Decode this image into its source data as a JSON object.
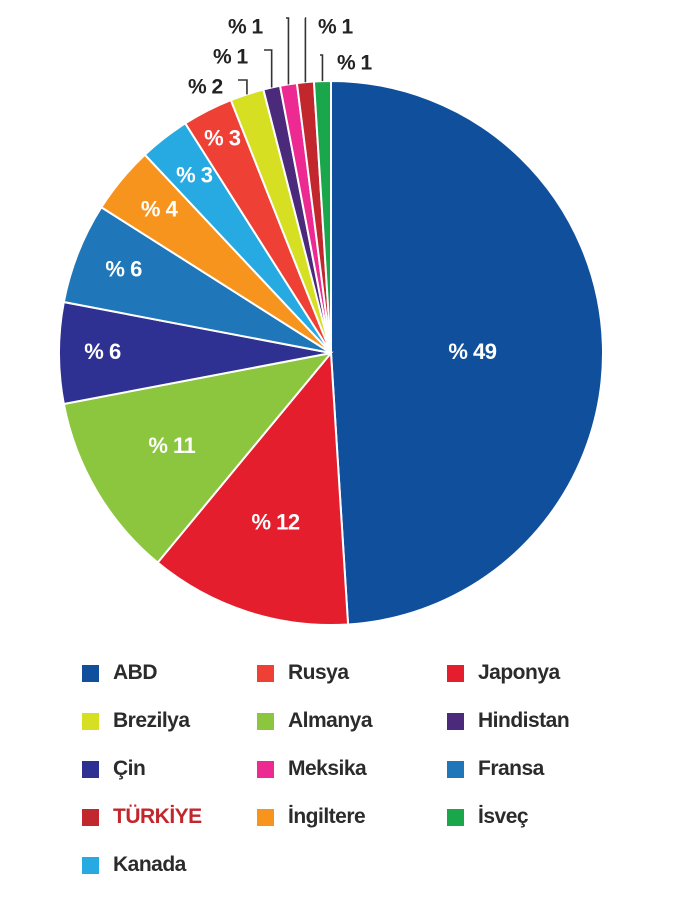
{
  "chart_data": {
    "type": "pie",
    "categories": [
      "ABD",
      "Japonya",
      "Almanya",
      "Çin",
      "Fransa",
      "İngiltere",
      "Kanada",
      "Rusya",
      "Brezilya",
      "Hindistan",
      "Meksika",
      "TÜRKİYE",
      "İsveç"
    ],
    "values": [
      49,
      12,
      11,
      6,
      6,
      4,
      3,
      3,
      2,
      1,
      1,
      1,
      1
    ],
    "labels": [
      "% 49",
      "% 12",
      "% 11",
      "% 6",
      "% 6",
      "% 4",
      "% 3",
      "% 3",
      "% 2",
      "% 1",
      "% 1",
      "% 1",
      "% 1"
    ],
    "colors": [
      "#0f4f9c",
      "#e41e2d",
      "#8cc63f",
      "#2e3192",
      "#1f77b9",
      "#f7941d",
      "#27aae1",
      "#ee4035",
      "#d7df23",
      "#4b2a7b",
      "#ec2a91",
      "#c1272d",
      "#1aa64b"
    ],
    "legend_position": "bottom"
  },
  "legend": [
    {
      "label": "ABD",
      "color": "#0f4f9c",
      "text_color": "#2b2b2b"
    },
    {
      "label": "Rusya",
      "color": "#ee4035",
      "text_color": "#2b2b2b"
    },
    {
      "label": "Japonya",
      "color": "#e41e2d",
      "text_color": "#2b2b2b"
    },
    {
      "label": "Brezilya",
      "color": "#d7df23",
      "text_color": "#2b2b2b"
    },
    {
      "label": "Almanya",
      "color": "#8cc63f",
      "text_color": "#2b2b2b"
    },
    {
      "label": "Hindistan",
      "color": "#4b2a7b",
      "text_color": "#2b2b2b"
    },
    {
      "label": "Çin",
      "color": "#2e3192",
      "text_color": "#2b2b2b"
    },
    {
      "label": "Meksika",
      "color": "#ec2a91",
      "text_color": "#2b2b2b"
    },
    {
      "label": "Fransa",
      "color": "#1f77b9",
      "text_color": "#2b2b2b"
    },
    {
      "label": "TÜRKİYE",
      "color": "#c1272d",
      "text_color": "#c1272d"
    },
    {
      "label": "İngiltere",
      "color": "#f7941d",
      "text_color": "#2b2b2b"
    },
    {
      "label": "İsveç",
      "color": "#1aa64b",
      "text_color": "#2b2b2b"
    },
    {
      "label": "Kanada",
      "color": "#27aae1",
      "text_color": "#2b2b2b"
    }
  ]
}
